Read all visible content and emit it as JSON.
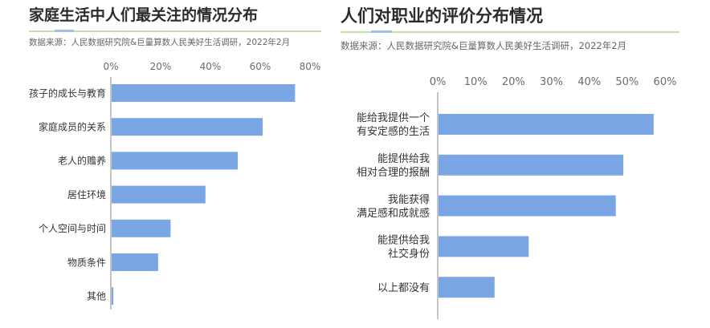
{
  "chart_data": [
    {
      "type": "bar",
      "orientation": "horizontal",
      "title": "家庭生活中人们最关注的情况分布",
      "subtitle": "数据来源：人民数据研究院&巨量算数人民美好生活调研，2022年2月",
      "categories": [
        "孩子的成长与教育",
        "家庭成员的关系",
        "老人的赡养",
        "居住环境",
        "个人空间与时间",
        "物质条件",
        "其他"
      ],
      "values": [
        74,
        61,
        51,
        38,
        24,
        19,
        1
      ],
      "unit": "%",
      "xlim": [
        0,
        80
      ],
      "ticks": [
        0,
        20,
        40,
        60,
        80
      ],
      "tick_labels": [
        "0%",
        "20%",
        "40%",
        "60%",
        "80%"
      ],
      "axis_position": "top",
      "grid": false,
      "bar_color": "#7aa6e6"
    },
    {
      "type": "bar",
      "orientation": "horizontal",
      "title": "人们对职业的评价分布情况",
      "subtitle": "数据来源：人民数据研究院&巨量算数人民美好生活调研，2022年2月",
      "categories": [
        [
          "能给我提供一个",
          "有安定感的生活"
        ],
        [
          "能提供给我",
          "相对合理的报酬"
        ],
        [
          "我能获得",
          "满足感和成就感"
        ],
        [
          "能提供给我",
          "社交身份"
        ],
        [
          "以上都没有"
        ]
      ],
      "values": [
        57,
        49,
        47,
        24,
        15
      ],
      "unit": "%",
      "xlim": [
        0,
        60
      ],
      "ticks": [
        0,
        10,
        20,
        30,
        40,
        50,
        60
      ],
      "tick_labels": [
        "0%",
        "10%",
        "20%",
        "30%",
        "40%",
        "50%",
        "60%"
      ],
      "axis_position": "top",
      "grid": false,
      "bar_color": "#7aa6e6"
    }
  ]
}
